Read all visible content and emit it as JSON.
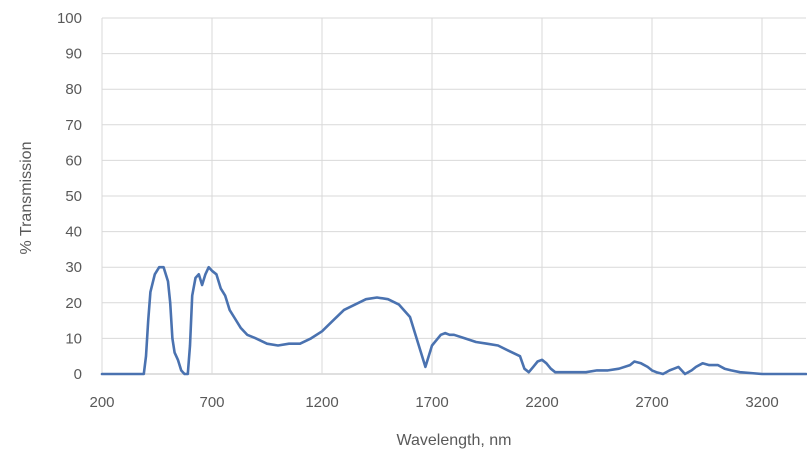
{
  "chart_data": {
    "type": "line",
    "title": "",
    "xlabel": "Wavelength, nm",
    "ylabel": "% Transmission",
    "xlim": [
      200,
      3400
    ],
    "ylim": [
      0,
      100
    ],
    "x_ticks": [
      "200",
      "700",
      "1200",
      "1700",
      "2200",
      "2700",
      "3200"
    ],
    "y_ticks": [
      "0",
      "10",
      "20",
      "30",
      "40",
      "50",
      "60",
      "70",
      "80",
      "90",
      "100"
    ],
    "grid": true,
    "legend": "none",
    "series": [
      {
        "color": "#4a72b0",
        "x": [
          200,
          390,
          400,
          410,
          420,
          440,
          460,
          480,
          500,
          510,
          520,
          530,
          545,
          560,
          575,
          590,
          600,
          610,
          625,
          640,
          655,
          670,
          685,
          700,
          720,
          740,
          760,
          780,
          800,
          830,
          860,
          900,
          950,
          1000,
          1050,
          1100,
          1150,
          1200,
          1250,
          1300,
          1350,
          1400,
          1450,
          1500,
          1550,
          1600,
          1630,
          1650,
          1670,
          1680,
          1700,
          1720,
          1740,
          1760,
          1780,
          1800,
          1850,
          1900,
          1950,
          2000,
          2050,
          2100,
          2120,
          2140,
          2160,
          2180,
          2200,
          2220,
          2240,
          2260,
          2300,
          2350,
          2400,
          2450,
          2500,
          2550,
          2600,
          2620,
          2650,
          2680,
          2700,
          2720,
          2750,
          2780,
          2800,
          2820,
          2850,
          2880,
          2900,
          2930,
          2960,
          3000,
          3030,
          3060,
          3100,
          3200,
          3300,
          3400
        ],
        "y": [
          0,
          0,
          5,
          15,
          23,
          28,
          30,
          30,
          26,
          20,
          10,
          6,
          4,
          1,
          0,
          0,
          8,
          22,
          27,
          28,
          25,
          28,
          30,
          29,
          28,
          24,
          22,
          18,
          16,
          13,
          11,
          10,
          8.5,
          8,
          8.5,
          8.5,
          10,
          12,
          15,
          18,
          19.5,
          21,
          21.5,
          21,
          19.5,
          16,
          10,
          6,
          2,
          4,
          8,
          9.5,
          11,
          11.5,
          11,
          11,
          10,
          9,
          8.5,
          8,
          6.5,
          5,
          1.5,
          0.5,
          2,
          3.5,
          4,
          3,
          1.5,
          0.5,
          0.5,
          0.5,
          0.5,
          1,
          1,
          1.5,
          2.5,
          3.5,
          3,
          2,
          1,
          0.5,
          0,
          1,
          1.5,
          2,
          0,
          1,
          2,
          3,
          2.5,
          2.5,
          1.5,
          1,
          0.5,
          0,
          0,
          0
        ]
      }
    ]
  }
}
